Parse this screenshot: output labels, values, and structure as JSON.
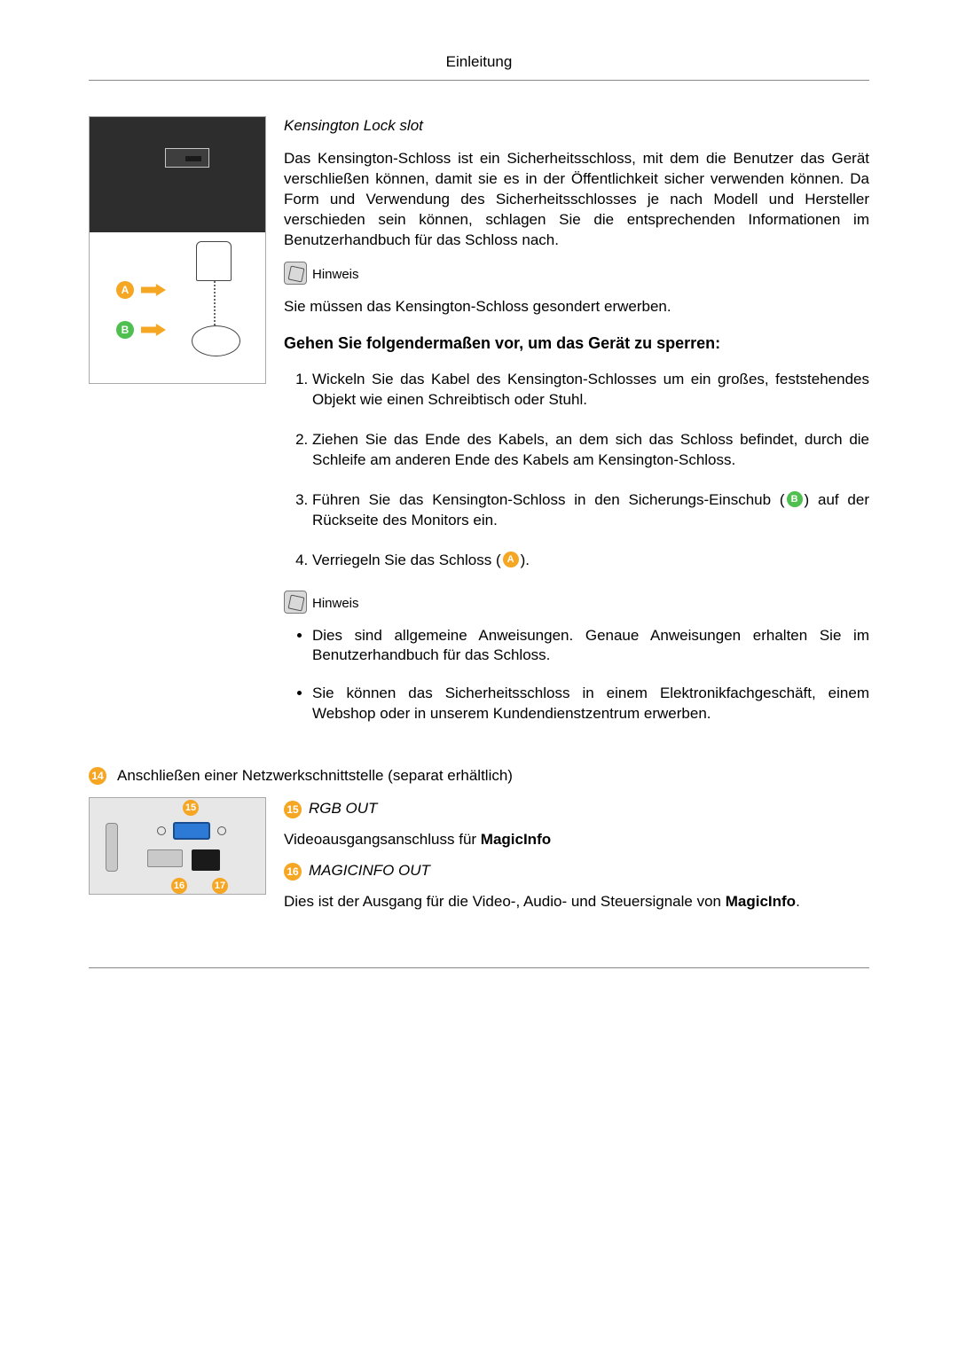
{
  "header": {
    "title": "Einleitung"
  },
  "kensington": {
    "title": "Kensington Lock slot",
    "paragraph": "Das Kensington-Schloss ist ein Sicherheitsschloss, mit dem die Benutzer das Gerät verschließen können, damit sie es in der Öffentlichkeit sicher verwenden können. Da Form und Verwendung des Sicherheitsschlosses je nach Modell und Hersteller verschieden sein können, schlagen Sie die entsprechenden Informationen im Benutzerhandbuch für das Schloss nach.",
    "note_label": "Hinweis",
    "note_text": "Sie müssen das Kensington-Schloss gesondert erwerben.",
    "sub_heading": "Gehen Sie folgendermaßen vor, um das Gerät zu sperren:",
    "steps": {
      "s1": "Wickeln Sie das Kabel des Kensington-Schlosses um ein großes, feststehendes Objekt wie einen Schreibtisch oder Stuhl.",
      "s2": "Ziehen Sie das Ende des Kabels, an dem sich das Schloss befindet, durch die Schleife am anderen Ende des Kabels am Kensington-Schloss.",
      "s3_pre": "Führen Sie das Kensington-Schloss in den Sicherungs-Einschub (",
      "s3_post": ") auf der Rückseite des Monitors ein.",
      "s4_pre": "Verriegeln Sie das Schloss (",
      "s4_post": ")."
    },
    "note2_label": "Hinweis",
    "bullets": {
      "b1": "Dies sind allgemeine Anweisungen. Genaue Anweisungen erhalten Sie im Benutzerhandbuch für das Schloss.",
      "b2": "Sie können das Sicherheitsschloss in einem Elektronikfachgeschäft, einem Webshop oder in unserem Kundendienstzentrum erwerben."
    },
    "markers": {
      "A": "A",
      "B": "B"
    }
  },
  "network": {
    "marker": "14",
    "title": "Anschließen einer Netzwerkschnittstelle (separat erhältlich)",
    "out1_num": "15",
    "out1_label": "RGB OUT",
    "out1_text_pre": "Videoausgangsanschluss für ",
    "out1_text_bold": "MagicInfo",
    "out2_num": "16",
    "out2_label": "MAGICINFO OUT",
    "out2_text_pre": "Dies ist der Ausgang für die Video-, Audio- und Steuersignale von ",
    "out2_text_bold": "MagicInfo",
    "out2_text_post": ".",
    "panel_markers": {
      "p15": "15",
      "p16": "16",
      "p17": "17"
    }
  },
  "colors": {
    "accent_orange": "#f5a623",
    "accent_green": "#4fbf4f",
    "rule": "#888888",
    "text": "#000000"
  }
}
